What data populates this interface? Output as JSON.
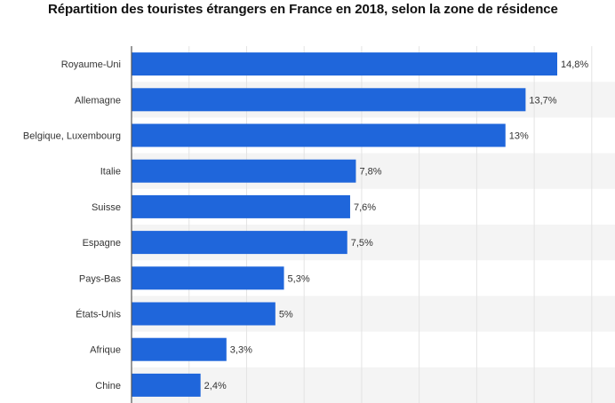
{
  "chart_data": {
    "type": "bar",
    "orientation": "horizontal",
    "title": "Répartition des touristes étrangers en France en 2018, selon la zone de résidence",
    "categories": [
      "Royaume-Uni",
      "Allemagne",
      "Belgique, Luxembourg",
      "Italie",
      "Suisse",
      "Espagne",
      "Pays-Bas",
      "États-Unis",
      "Afrique",
      "Chine"
    ],
    "values": [
      14.8,
      13.7,
      13,
      7.8,
      7.6,
      7.5,
      5.3,
      5,
      3.3,
      2.4
    ],
    "value_labels": [
      "14,8%",
      "13,7%",
      "13%",
      "7,8%",
      "7,6%",
      "7,5%",
      "5,3%",
      "5%",
      "3,3%",
      "2,4%"
    ],
    "xlim": [
      0,
      16
    ],
    "grid": true,
    "bar_color": "#1f66db"
  }
}
